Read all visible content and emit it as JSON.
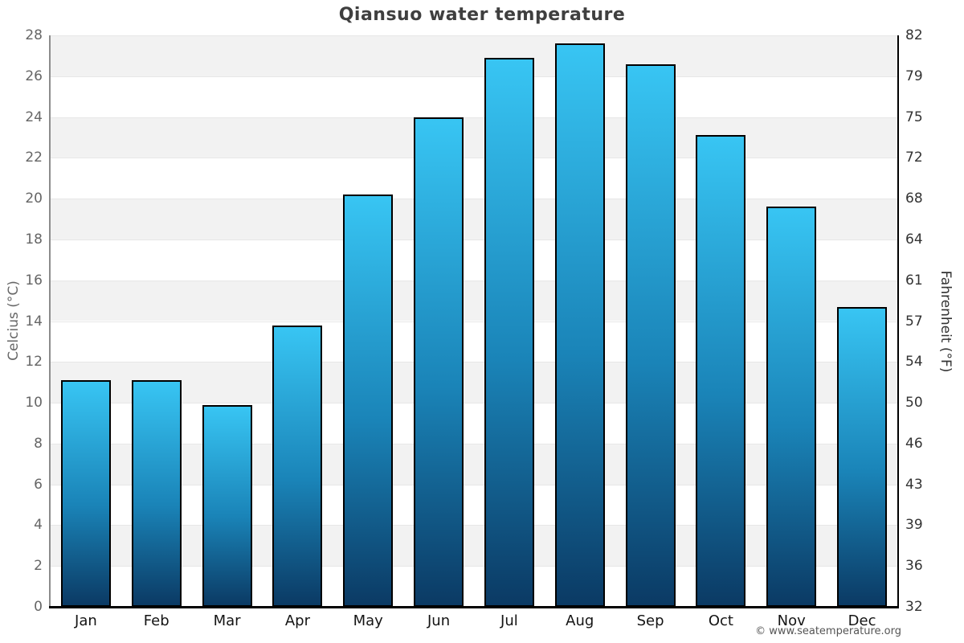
{
  "title": "Qiansuo water temperature",
  "footer": {
    "copyright": "© www.seatemperature.org"
  },
  "chart_data": {
    "type": "bar",
    "title": "Qiansuo water temperature",
    "categories": [
      "Jan",
      "Feb",
      "Mar",
      "Apr",
      "May",
      "Jun",
      "Jul",
      "Aug",
      "Sep",
      "Oct",
      "Nov",
      "Dec"
    ],
    "series": [
      {
        "name": "Water temperature (Celsius)",
        "values": [
          11.1,
          11.1,
          9.9,
          13.8,
          20.2,
          24.0,
          26.9,
          27.6,
          26.6,
          23.1,
          19.6,
          14.7
        ]
      }
    ],
    "xlabel": "",
    "ylabel_left": "Celcius (°C)",
    "ylabel_right": "Fahrenheit (°F)",
    "ylim_celsius": [
      0,
      28
    ],
    "yticks_celsius": [
      0,
      2,
      4,
      6,
      8,
      10,
      12,
      14,
      16,
      18,
      20,
      22,
      24,
      26,
      28
    ],
    "yticks_fahrenheit": [
      32,
      36,
      39,
      43,
      46,
      50,
      54,
      57,
      61,
      64,
      68,
      72,
      75,
      79,
      82
    ],
    "grid": "horizontal gridlines with alternating shaded bands",
    "legend": "none",
    "colors": {
      "bar_gradient_top": "#38c5f3",
      "bar_gradient_bottom": "#0b3a64",
      "bar_border": "#000000",
      "band_shade": "#f2f2f2",
      "gridline": "#e7e7e7",
      "title_text": "#3f3f3f",
      "left_tick_text": "#666666",
      "right_tick_text": "#333333",
      "background": "#ffffff"
    }
  }
}
